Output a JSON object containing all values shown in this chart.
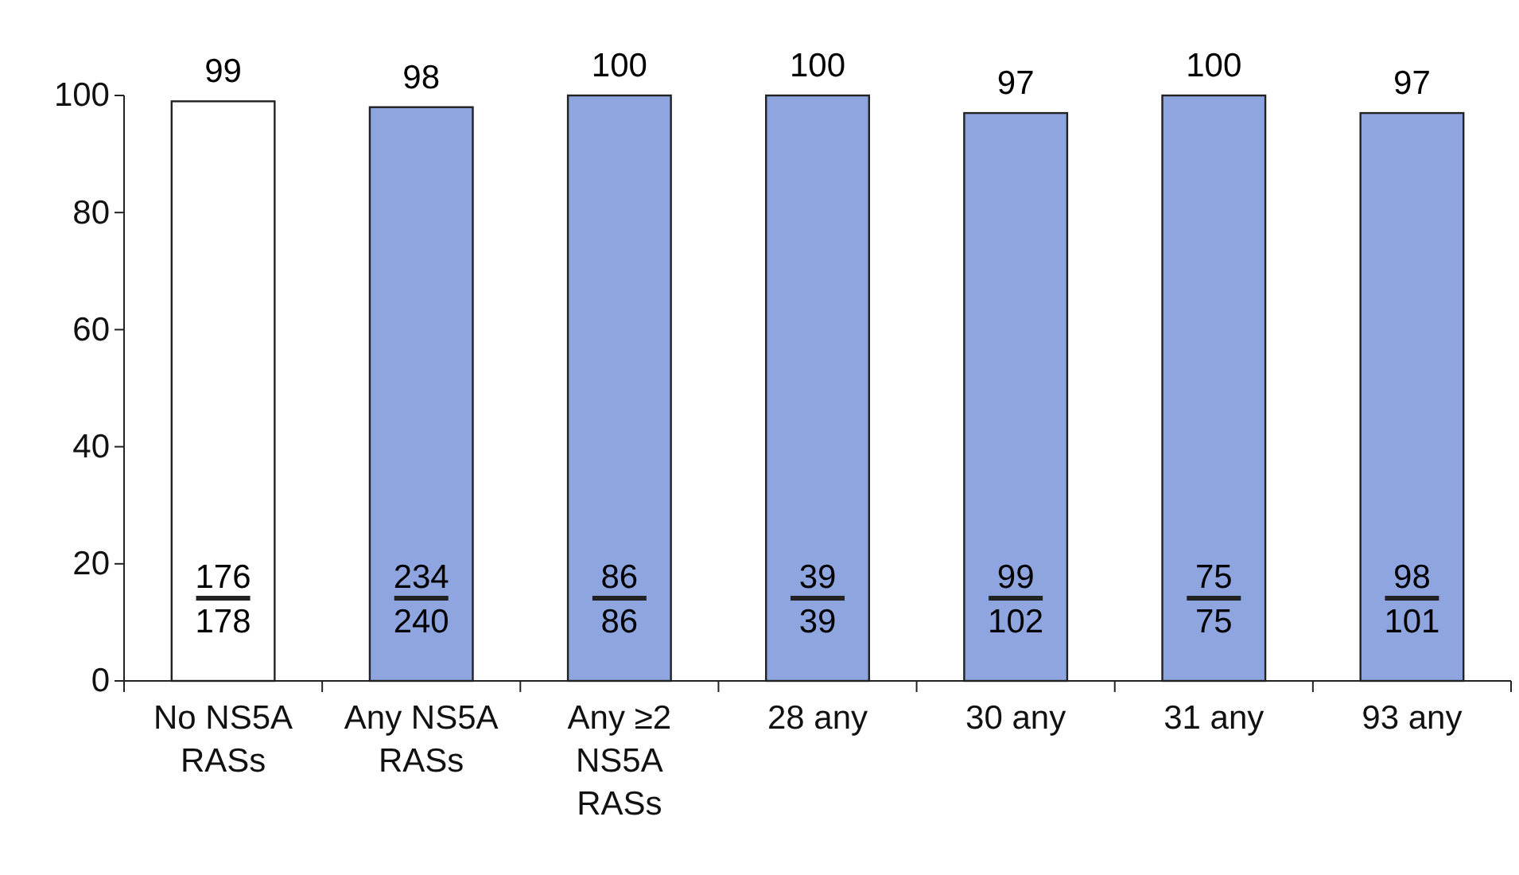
{
  "chart_data": {
    "type": "bar",
    "categories": [
      "No NS5A\nRASs",
      "Any NS5A\nRASs",
      "Any ≥2\nNS5A\nRASs",
      "28 any",
      "30 any",
      "31 any",
      "93 any"
    ],
    "values": [
      99,
      98,
      100,
      100,
      97,
      100,
      97
    ],
    "colors": [
      "#ffffff",
      "#8ea5e0",
      "#8ea5e0",
      "#8ea5e0",
      "#8ea5e0",
      "#8ea5e0",
      "#8ea5e0"
    ],
    "data_labels": true,
    "ylim": [
      0,
      100
    ],
    "yticks": [
      0,
      20,
      40,
      60,
      80,
      100
    ],
    "annotations": [
      "176",
      "178",
      "234",
      "240",
      "86",
      "86",
      "39",
      "39",
      "99",
      "102",
      "75",
      "75",
      "98",
      "101"
    ]
  }
}
